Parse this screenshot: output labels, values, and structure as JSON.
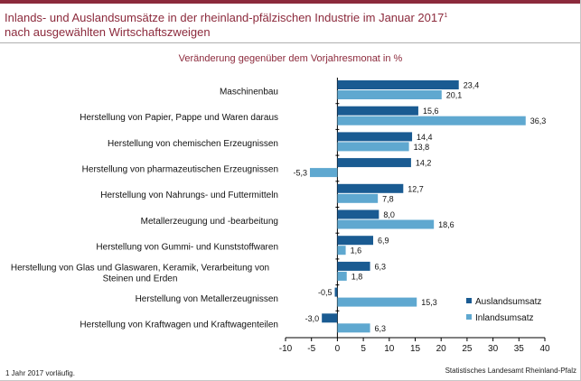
{
  "header": {
    "title_line1": "Inlands- und Auslandsumsätze in der rheinland-pfälzischen Industrie im Januar 2017",
    "title_sup": "1",
    "title_line2": "nach ausgewählten Wirtschaftszweigen",
    "accent_color": "#8c2a3c"
  },
  "footer": {
    "footnote": "1 Jahr 2017 vorläufig.",
    "source": "Statistisches Landesamt Rheinland-Pfalz"
  },
  "chart_data": {
    "type": "bar",
    "orientation": "horizontal",
    "title": "Veränderung gegenüber dem Vorjahresmonat  in %",
    "categories": [
      "Maschinenbau",
      "Herstellung von Papier, Pappe und Waren daraus",
      "Herstellung von chemischen Erzeugnissen",
      "Herstellung von pharmazeutischen Erzeugnissen",
      "Herstellung von Nahrungs- und Futtermitteln",
      "Metallerzeugung und -bearbeitung",
      "Herstellung von Gummi- und Kunststoffwaren",
      "Herstellung von Glas und Glaswaren, Keramik, Verarbeitung von Steinen und Erden",
      "Herstellung von Metallerzeugnissen",
      "Herstellung von Kraftwagen und Kraftwagenteilen"
    ],
    "series": [
      {
        "name": "Auslandsumsatz",
        "color": "#1a5b92",
        "values": [
          23.4,
          15.6,
          14.4,
          14.2,
          12.7,
          8.0,
          6.9,
          6.3,
          -0.5,
          -3.0
        ],
        "labels": [
          "23,4",
          "15,6",
          "14,4",
          "14,2",
          "12,7",
          "8,0",
          "6,9",
          "6,3",
          "-0,5",
          "-3,0"
        ]
      },
      {
        "name": "Inlandsumsatz",
        "color": "#5fa8d0",
        "values": [
          20.1,
          36.3,
          13.8,
          null,
          7.8,
          18.6,
          1.6,
          1.8,
          15.3,
          6.3
        ],
        "labels": [
          "20,1",
          "36,3",
          "13,8",
          "",
          "7,8",
          "18,6",
          "1,6",
          "1,8",
          "15,3",
          "6,3"
        ]
      },
      {
        "name": "",
        "color": "#5fa8d0",
        "values": [
          null,
          null,
          null,
          -5.3,
          null,
          null,
          null,
          null,
          null,
          null
        ],
        "labels": [
          "",
          "",
          "",
          "-5,3",
          "",
          "",
          "",
          "",
          "",
          ""
        ]
      }
    ],
    "xlim": [
      -10,
      40
    ],
    "xticks": [
      -10,
      -5,
      0,
      5,
      10,
      15,
      20,
      25,
      30,
      35,
      40
    ],
    "xtick_labels": [
      "-10",
      "-5",
      "0",
      "5",
      "10",
      "15",
      "20",
      "25",
      "30",
      "35",
      "40"
    ],
    "grid": false,
    "legend_position": "bottom-right"
  }
}
